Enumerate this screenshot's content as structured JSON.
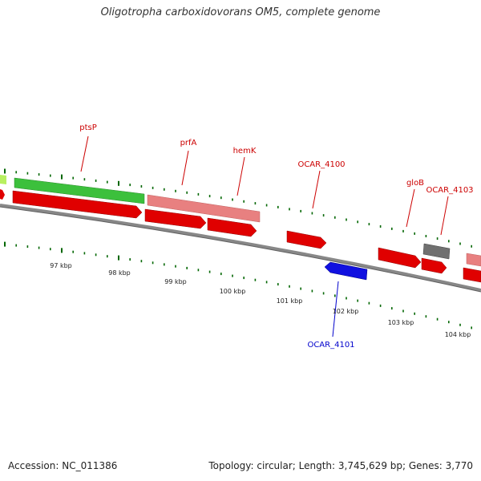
{
  "title": "Oligotropha carboxidovorans OM5, complete genome",
  "footer": {
    "accession": "Accession: NC_011386",
    "summary": "Topology: circular; Length: 3,745,629 bp; Genes: 3,770"
  },
  "colors": {
    "forward_cds": "#e00000",
    "reverse_cds": "#1010e0",
    "rrna": "#40c040",
    "pseudo": "#e88080",
    "other": "#707070",
    "light_green": "#b8f060",
    "tick": "#006600",
    "backbone": "#888888"
  },
  "scale": {
    "tick_labels": [
      "97 kbp",
      "98 kbp",
      "99 kbp",
      "100 kbp",
      "101 kbp",
      "102 kbp",
      "103 kbp",
      "104 kbp"
    ]
  },
  "gene_labels": [
    {
      "name": "ptsP",
      "color": "#cc0000"
    },
    {
      "name": "prfA",
      "color": "#cc0000"
    },
    {
      "name": "hemK",
      "color": "#cc0000"
    },
    {
      "name": "OCAR_4100",
      "color": "#cc0000"
    },
    {
      "name": "gloB",
      "color": "#cc0000"
    },
    {
      "name": "OCAR_4103",
      "color": "#cc0000"
    },
    {
      "name": "OCAR_4101",
      "color": "#0000cc"
    }
  ]
}
